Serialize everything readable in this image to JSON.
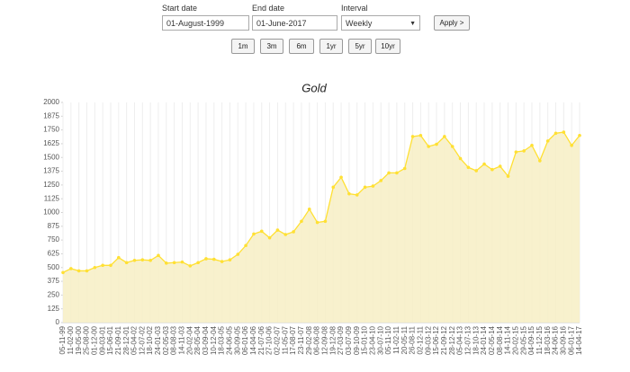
{
  "form": {
    "start_label": "Start date",
    "start_value": "01-August-1999",
    "end_label": "End date",
    "end_value": "01-June-2017",
    "interval_label": "Interval",
    "interval_value": "Weekly",
    "apply": "Apply >",
    "ranges": [
      "1m",
      "3m",
      "6m",
      "1yr",
      "5yr",
      "10yr"
    ]
  },
  "chart_data": {
    "type": "area",
    "title": "Gold",
    "categories": [
      "05-11-99",
      "11-02-00",
      "19-05-00",
      "25-08-00",
      "01-12-00",
      "09-03-01",
      "15-06-01",
      "21-09-01",
      "28-12-01",
      "05-04-02",
      "12-07-02",
      "18-10-02",
      "24-01-03",
      "02-05-03",
      "08-08-03",
      "14-11-03",
      "20-02-04",
      "28-05-04",
      "03-09-04",
      "10-12-04",
      "18-03-05",
      "24-06-05",
      "30-09-05",
      "06-01-06",
      "14-04-06",
      "21-07-06",
      "27-10-06",
      "02-02-07",
      "11-05-07",
      "17-08-07",
      "23-11-07",
      "29-02-08",
      "06-06-08",
      "12-09-08",
      "19-12-08",
      "27-03-09",
      "03-07-09",
      "09-10-09",
      "15-01-10",
      "23-04-10",
      "30-07-10",
      "05-11-10",
      "11-02-11",
      "20-05-11",
      "26-08-11",
      "02-12-11",
      "09-03-12",
      "15-06-12",
      "21-09-12",
      "28-12-12",
      "05-04-13",
      "12-07-13",
      "18-10-13",
      "24-01-14",
      "02-05-14",
      "08-08-14",
      "14-11-14",
      "20-02-15",
      "29-05-15",
      "04-09-15",
      "11-12-15",
      "18-03-16",
      "24-06-16",
      "30-09-16",
      "06-01-17",
      "14-04-17"
    ],
    "values": [
      455,
      490,
      470,
      470,
      500,
      520,
      520,
      590,
      545,
      565,
      570,
      565,
      610,
      540,
      545,
      550,
      515,
      545,
      580,
      575,
      555,
      570,
      620,
      700,
      805,
      830,
      770,
      840,
      800,
      825,
      920,
      1030,
      910,
      920,
      1230,
      1320,
      1170,
      1160,
      1230,
      1240,
      1290,
      1360,
      1360,
      1400,
      1690,
      1700,
      1600,
      1620,
      1690,
      1600,
      1490,
      1410,
      1380,
      1440,
      1390,
      1420,
      1330,
      1550,
      1560,
      1610,
      1470,
      1650,
      1720,
      1730,
      1610,
      1700
    ],
    "color": "#ffe033",
    "fill_color": "#f7eec4",
    "ylim": [
      0,
      2000
    ],
    "yticks": [
      0,
      125,
      250,
      375,
      500,
      625,
      750,
      875,
      1000,
      1125,
      1250,
      1375,
      1500,
      1625,
      1750,
      1875,
      2000
    ],
    "grid": true
  }
}
